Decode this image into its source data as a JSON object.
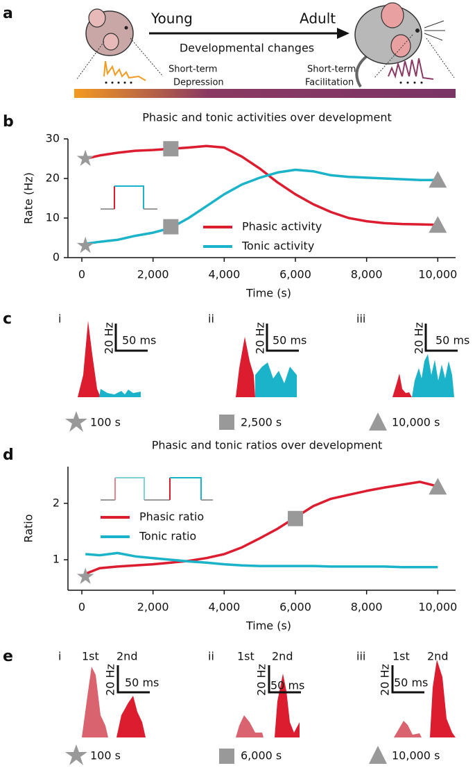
{
  "figure": {
    "panel_labels": [
      "a",
      "b",
      "c",
      "d",
      "e"
    ],
    "diagram": {
      "young": "Young",
      "adult": "Adult",
      "changes": "Developmental changes",
      "young_note": [
        "Short-term",
        "Depression"
      ],
      "adult_note": [
        "Short-term",
        "Facilitation"
      ]
    },
    "panel_c": {
      "sub_labels": [
        "i",
        "ii",
        "iii"
      ],
      "scale_y": "20 Hz",
      "scale_x": "50 ms",
      "times": [
        "100 s",
        "2,500 s",
        "10,000 s"
      ]
    },
    "panel_e": {
      "sub_labels": [
        "i",
        "ii",
        "iii"
      ],
      "first": "1st",
      "second": "2nd",
      "scale_y": "20 Hz",
      "scale_x": "50 ms",
      "times": [
        "100 s",
        "6,000 s",
        "10,000 s"
      ]
    }
  },
  "chart_data": [
    {
      "type": "line",
      "title": "Phasic and tonic activities over development",
      "xlabel": "Time (s)",
      "ylabel": "Rate (Hz)",
      "x": [
        100,
        500,
        1000,
        1500,
        2000,
        2500,
        3000,
        3500,
        4000,
        4500,
        5000,
        5500,
        6000,
        6500,
        7000,
        7500,
        8000,
        8500,
        9000,
        9500,
        10000
      ],
      "series": [
        {
          "name": "Phasic activity",
          "color": "#dc1c2f",
          "values": [
            25,
            25.8,
            26.5,
            27,
            27.2,
            27.5,
            27.8,
            28.2,
            27.8,
            25.5,
            22.5,
            19,
            16,
            13.5,
            11.5,
            10,
            9.2,
            8.7,
            8.5,
            8.4,
            8.3
          ]
        },
        {
          "name": "Tonic activity",
          "color": "#1bb3c9",
          "values": [
            3.5,
            4,
            4.5,
            5.5,
            6.3,
            7.5,
            10,
            13,
            16,
            18.5,
            20.2,
            21.5,
            22.2,
            21.8,
            20.8,
            20.4,
            20.2,
            20,
            19.8,
            19.6,
            19.6
          ]
        }
      ],
      "markers": [
        {
          "shape": "star",
          "x": 100,
          "y": [
            25,
            3
          ]
        },
        {
          "shape": "square",
          "x": 2500,
          "y": [
            27.5,
            7.8
          ]
        },
        {
          "shape": "triangle",
          "x": 10000,
          "y": [
            19.6,
            8.2
          ]
        }
      ],
      "marker_color": "#999999",
      "xlim": [
        -390,
        10500
      ],
      "ylim": [
        0,
        30
      ],
      "xticks": [
        0,
        {
          "value": 2000,
          "label": "2,000"
        },
        {
          "value": 4000,
          "label": "4,000"
        },
        {
          "value": 6000,
          "label": "6,000"
        },
        {
          "value": 8000,
          "label": "8,000"
        },
        {
          "value": 10000,
          "label": "10,000"
        }
      ],
      "yticks": [
        0,
        10,
        20,
        30
      ],
      "legend": "lower center"
    },
    {
      "type": "line",
      "title": "Phasic and tonic ratios over development",
      "xlabel": "Time (s)",
      "ylabel": "Ratio",
      "x": [
        100,
        500,
        1000,
        1500,
        2000,
        2500,
        3000,
        3500,
        4000,
        4500,
        5000,
        5500,
        6000,
        6500,
        7000,
        7500,
        8000,
        8500,
        9000,
        9500,
        10000
      ],
      "series": [
        {
          "name": "Phasic ratio",
          "color": "#dc1c2f",
          "values": [
            0.75,
            0.85,
            0.88,
            0.9,
            0.92,
            0.95,
            0.98,
            1.03,
            1.1,
            1.22,
            1.38,
            1.55,
            1.75,
            1.95,
            2.08,
            2.15,
            2.22,
            2.28,
            2.33,
            2.38,
            2.3
          ]
        },
        {
          "name": "Tonic ratio",
          "color": "#1bb3c9",
          "values": [
            1.1,
            1.08,
            1.12,
            1.06,
            1.03,
            1,
            0.97,
            0.95,
            0.92,
            0.9,
            0.89,
            0.89,
            0.89,
            0.89,
            0.88,
            0.88,
            0.88,
            0.88,
            0.87,
            0.87,
            0.87
          ]
        }
      ],
      "markers": [
        {
          "shape": "star",
          "x": 100,
          "y": [
            0.7
          ]
        },
        {
          "shape": "square",
          "x": 6000,
          "y": [
            1.73
          ]
        },
        {
          "shape": "triangle",
          "x": 10000,
          "y": [
            2.29
          ]
        }
      ],
      "marker_color": "#999999",
      "xlim": [
        -390,
        10500
      ],
      "ylim": [
        0.46,
        2.65
      ],
      "xticks": [
        0,
        {
          "value": 2000,
          "label": "2,000"
        },
        {
          "value": 4000,
          "label": "4,000"
        },
        {
          "value": 6000,
          "label": "6,000"
        },
        {
          "value": 8000,
          "label": "8,000"
        },
        {
          "value": 10000,
          "label": "10,000"
        }
      ],
      "yticks": [
        1,
        2
      ],
      "legend": "upper left"
    }
  ]
}
